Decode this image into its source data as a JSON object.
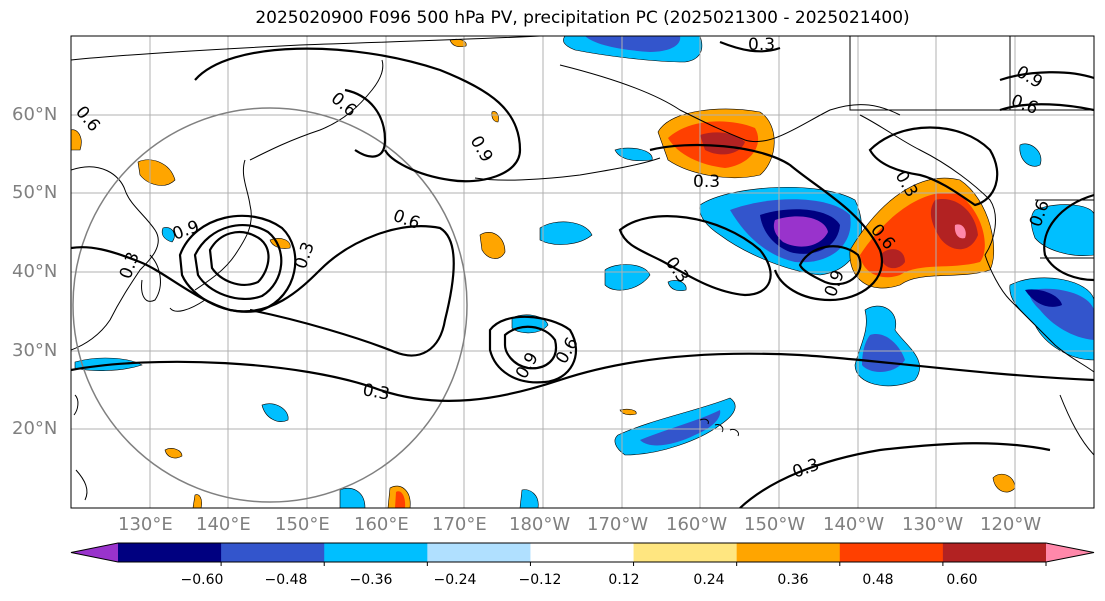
{
  "title": "2025020900 F096 500 hPa PV, precipitation PC (2025021300 - 2025021400)",
  "map": {
    "lat_labels": [
      "60°N",
      "50°N",
      "40°N",
      "30°N",
      "20°N"
    ],
    "lon_labels": [
      "130°E",
      "140°E",
      "150°E",
      "160°E",
      "170°E",
      "180°W",
      "170°W",
      "160°W",
      "150°W",
      "140°W",
      "130°W",
      "120°W"
    ],
    "contour_labels": [
      "0.3",
      "0.6",
      "0.9"
    ]
  },
  "colorbar": {
    "colors": [
      "#9933cc",
      "#000080",
      "#3355cc",
      "#00bfff",
      "#b0e0ff",
      "#ffffff",
      "#ffe680",
      "#ffa500",
      "#ff4000",
      "#b22222",
      "#ff88aa"
    ],
    "tick_labels": [
      "−0.60",
      "−0.48",
      "−0.36",
      "−0.24",
      "−0.12",
      "0.12",
      "0.24",
      "0.36",
      "0.48",
      "0.60"
    ]
  }
}
